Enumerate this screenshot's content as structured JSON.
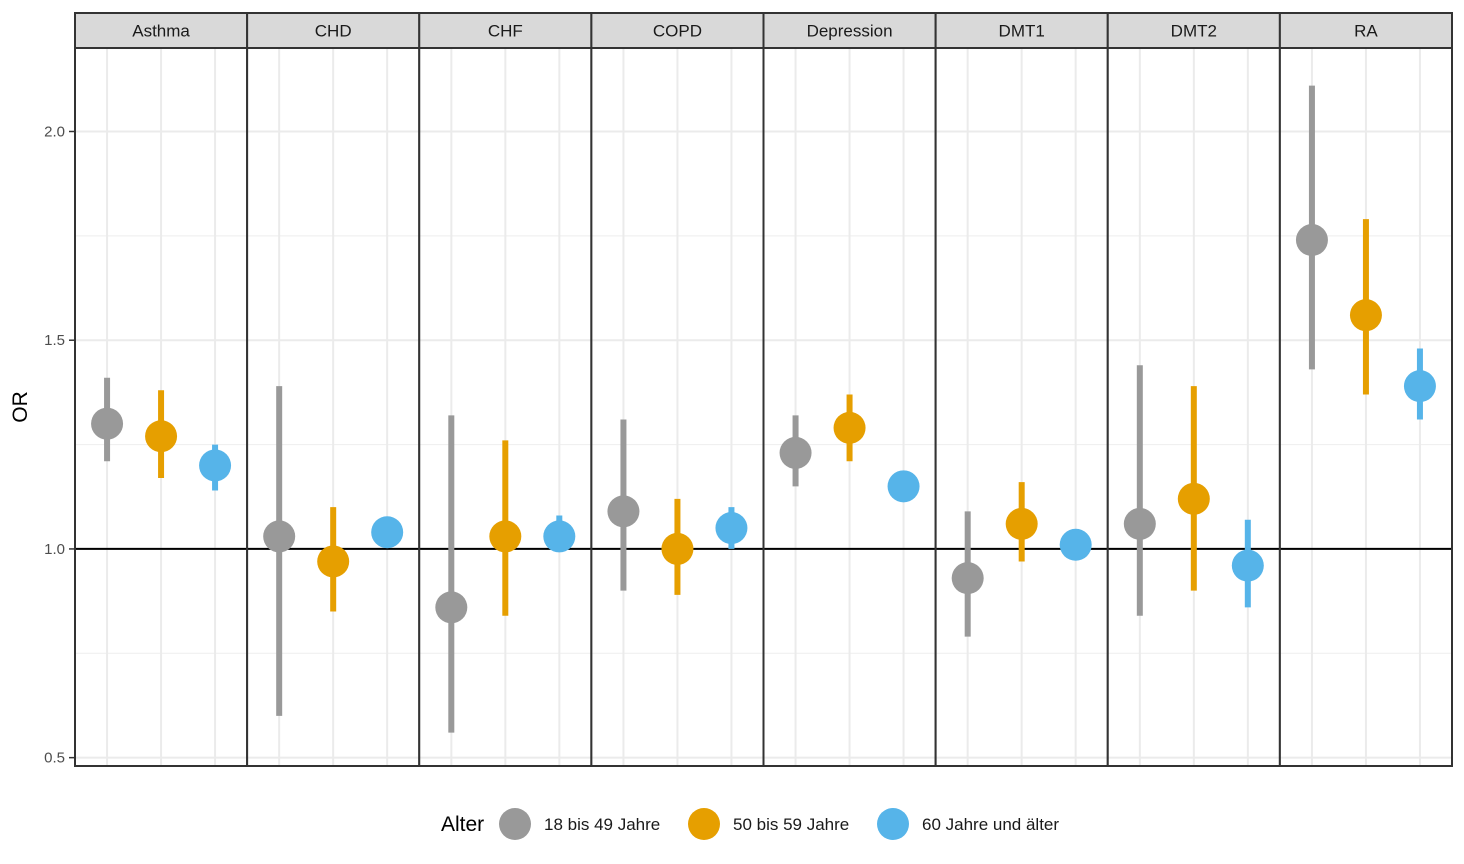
{
  "chart_data": {
    "type": "pointrange",
    "ylabel": "OR",
    "xlabel": "",
    "ylim": [
      0.48,
      2.2
    ],
    "yticks": [
      "0.5",
      "1.0",
      "1.5",
      "2.0"
    ],
    "reference_line": 1.0,
    "panels": [
      "Asthma",
      "CHD",
      "CHF",
      "COPD",
      "Depression",
      "DMT1",
      "DMT2",
      "RA"
    ],
    "legend": {
      "title": "Alter",
      "position": "bottom",
      "entries": [
        "18 bis 49 Jahre",
        "50 bis 59 Jahre",
        "60 Jahre und älter"
      ]
    },
    "series": [
      {
        "name": "18 bis 49 Jahre",
        "color": "#999999",
        "or": [
          1.3,
          1.03,
          0.86,
          1.09,
          1.23,
          0.93,
          1.06,
          1.74
        ],
        "lower": [
          1.21,
          0.6,
          0.56,
          0.9,
          1.15,
          0.79,
          0.84,
          1.43
        ],
        "upper": [
          1.41,
          1.39,
          1.32,
          1.31,
          1.32,
          1.09,
          1.44,
          2.11
        ]
      },
      {
        "name": "50 bis 59 Jahre",
        "color": "#E69F00",
        "or": [
          1.27,
          0.97,
          1.03,
          1.0,
          1.29,
          1.06,
          1.12,
          1.56
        ],
        "lower": [
          1.17,
          0.85,
          0.84,
          0.89,
          1.21,
          0.97,
          0.9,
          1.37
        ],
        "upper": [
          1.38,
          1.1,
          1.26,
          1.12,
          1.37,
          1.16,
          1.39,
          1.79
        ]
      },
      {
        "name": "60 Jahre und älter",
        "color": "#56B4E9",
        "or": [
          1.2,
          1.04,
          1.03,
          1.05,
          1.15,
          1.01,
          0.96,
          1.39
        ],
        "lower": [
          1.14,
          1.02,
          1.0,
          1.0,
          1.13,
          0.99,
          0.86,
          1.31
        ],
        "upper": [
          1.25,
          1.06,
          1.08,
          1.1,
          1.17,
          1.03,
          1.07,
          1.48
        ]
      }
    ]
  }
}
